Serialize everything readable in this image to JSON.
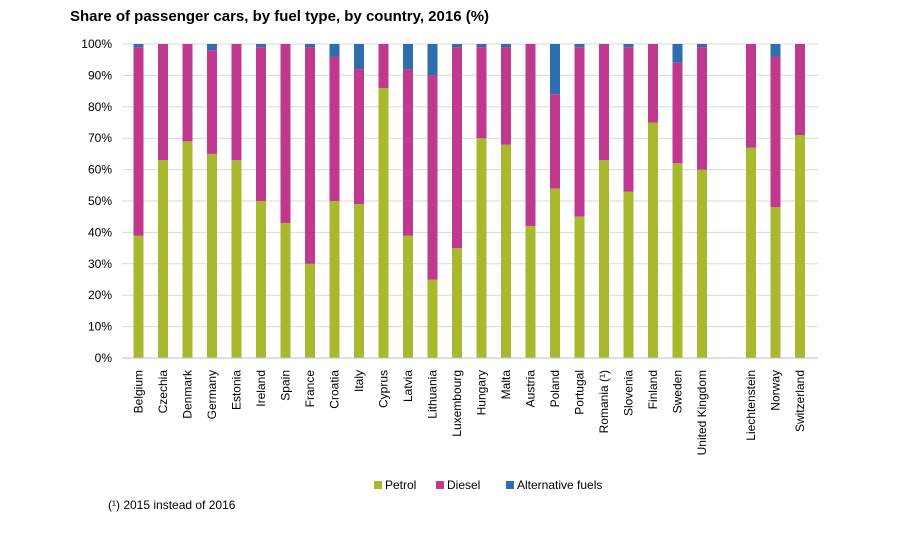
{
  "chart_data": {
    "type": "bar",
    "stacked": true,
    "title": "Share of passenger cars, by fuel type, by country, 2016 (%)",
    "ylim": [
      0,
      100
    ],
    "yticks": [
      "0%",
      "10%",
      "20%",
      "30%",
      "40%",
      "50%",
      "60%",
      "70%",
      "80%",
      "90%",
      "100%"
    ],
    "categories": [
      "Belgium",
      "Czechia",
      "Denmark",
      "Germany",
      "Estonia",
      "Ireland",
      "Spain",
      "France",
      "Croatia",
      "Italy",
      "Cyprus",
      "Latvia",
      "Lithuania",
      "Luxembourg",
      "Hungary",
      "Malta",
      "Austria",
      "Poland",
      "Portugal",
      "Romania (¹)",
      "Slovenia",
      "Finland",
      "Sweden",
      "United Kingdom",
      "Liechtenstein",
      "Norway",
      "Switzerland"
    ],
    "series": [
      {
        "name": "Petrol",
        "color": "#a8b92e",
        "values": [
          39,
          63,
          69,
          65,
          63,
          50,
          43,
          30,
          50,
          49,
          86,
          39,
          25,
          35,
          70,
          68,
          42,
          54,
          45,
          63,
          53,
          75,
          62,
          60,
          67,
          48,
          71
        ]
      },
      {
        "name": "Diesel",
        "color": "#c0398f",
        "values": [
          60,
          37,
          31,
          33,
          37,
          49,
          57,
          69,
          46,
          43,
          14,
          53,
          65,
          64,
          29,
          31,
          58,
          30,
          54,
          37,
          46,
          25,
          32,
          39,
          33,
          48,
          29
        ]
      },
      {
        "name": "Alternative fuels",
        "color": "#2e6ead",
        "values": [
          1,
          0,
          0,
          2,
          0,
          1,
          0,
          1,
          4,
          8,
          0,
          8,
          10,
          1,
          1,
          1,
          0,
          16,
          1,
          0,
          1,
          0,
          6,
          1,
          0,
          4,
          0
        ]
      }
    ],
    "grid": true,
    "legend_position": "bottom"
  },
  "footnote": "(¹) 2015 instead of 2016"
}
